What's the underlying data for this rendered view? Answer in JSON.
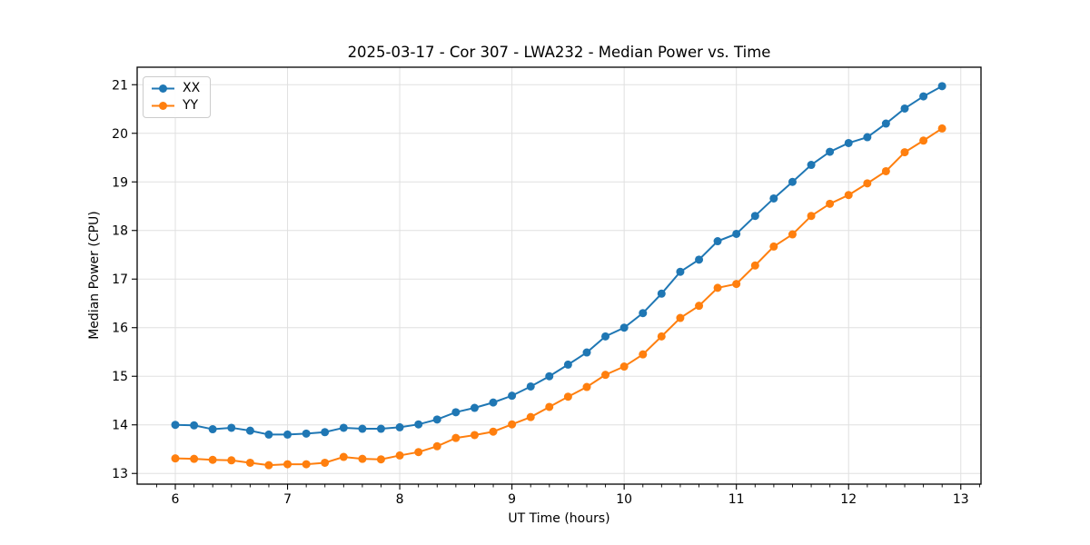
{
  "chart_data": {
    "type": "line",
    "title": "2025-03-17 - Cor 307 - LWA232 - Median Power vs. Time",
    "xlabel": "UT Time (hours)",
    "ylabel": "Median Power (CPU)",
    "xlim": [
      5.66,
      13.18
    ],
    "ylim": [
      12.78,
      21.36
    ],
    "x_ticks": [
      6,
      7,
      8,
      9,
      10,
      11,
      12,
      13
    ],
    "y_ticks": [
      13,
      14,
      15,
      16,
      17,
      18,
      19,
      20,
      21
    ],
    "x_minor_step": 0.16667,
    "grid": true,
    "legend_position": "upper-left",
    "x": [
      6.0,
      6.167,
      6.333,
      6.5,
      6.667,
      6.833,
      7.0,
      7.167,
      7.333,
      7.5,
      7.667,
      7.833,
      8.0,
      8.167,
      8.333,
      8.5,
      8.667,
      8.833,
      9.0,
      9.167,
      9.333,
      9.5,
      9.667,
      9.833,
      10.0,
      10.167,
      10.333,
      10.5,
      10.667,
      10.833,
      11.0,
      11.167,
      11.333,
      11.5,
      11.667,
      11.833,
      12.0,
      12.167,
      12.333,
      12.5,
      12.667,
      12.833
    ],
    "series": [
      {
        "name": "XX",
        "color": "#1f77b4",
        "values": [
          14.0,
          13.99,
          13.91,
          13.94,
          13.88,
          13.8,
          13.8,
          13.82,
          13.85,
          13.94,
          13.92,
          13.92,
          13.95,
          14.01,
          14.11,
          14.26,
          14.35,
          14.46,
          14.6,
          14.79,
          15.0,
          15.24,
          15.49,
          15.82,
          16.0,
          16.3,
          16.7,
          17.15,
          17.4,
          17.78,
          17.93,
          18.3,
          18.66,
          19.0,
          19.35,
          19.62,
          19.8,
          19.92,
          20.2,
          20.51,
          20.76,
          20.97
        ]
      },
      {
        "name": "YY",
        "color": "#ff7f0e",
        "values": [
          13.31,
          13.3,
          13.28,
          13.27,
          13.22,
          13.17,
          13.19,
          13.19,
          13.22,
          13.34,
          13.3,
          13.29,
          13.37,
          13.44,
          13.56,
          13.73,
          13.79,
          13.86,
          14.01,
          14.16,
          14.37,
          14.58,
          14.78,
          15.03,
          15.2,
          15.45,
          15.82,
          16.2,
          16.45,
          16.82,
          16.9,
          17.28,
          17.67,
          17.92,
          18.3,
          18.55,
          18.73,
          18.97,
          19.22,
          19.61,
          19.85,
          20.1
        ]
      }
    ]
  },
  "style": {
    "grid_color": "#e0e0e0",
    "spine_color": "#000000",
    "tick_label_color": "#000000",
    "background": "#ffffff"
  }
}
